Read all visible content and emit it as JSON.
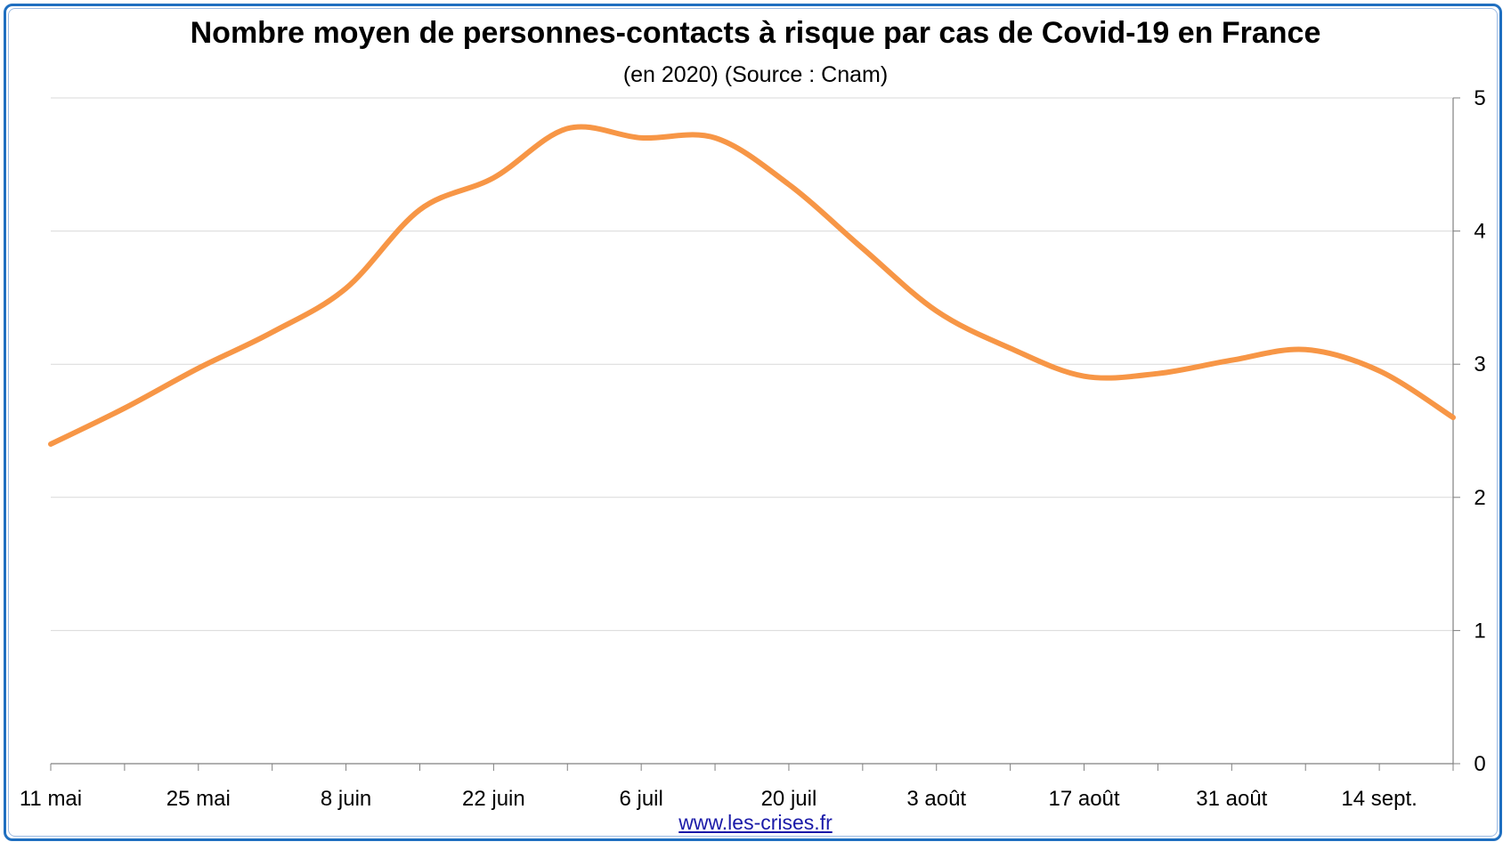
{
  "colors": {
    "frame": "#1f6fc0",
    "series": "#f79646",
    "grid": "#d9d9d9",
    "axis": "#808080",
    "link": "#1a1aa8"
  },
  "chart_data": {
    "type": "line",
    "title": "Nombre moyen de personnes-contacts à risque par cas de Covid-19 en France",
    "subtitle": "(en 2020) (Source : Cnam)",
    "xlabel": "",
    "ylabel": "",
    "x": [
      "2020-05-11",
      "2020-05-18",
      "2020-05-25",
      "2020-06-01",
      "2020-06-08",
      "2020-06-15",
      "2020-06-22",
      "2020-06-29",
      "2020-07-06",
      "2020-07-13",
      "2020-07-20",
      "2020-07-27",
      "2020-08-03",
      "2020-08-10",
      "2020-08-17",
      "2020-08-24",
      "2020-08-31",
      "2020-09-07",
      "2020-09-14",
      "2020-09-21"
    ],
    "series": [
      {
        "values": [
          2.4,
          2.67,
          2.97,
          3.24,
          3.57,
          4.16,
          4.4,
          4.77,
          4.7,
          4.7,
          4.35,
          3.87,
          3.4,
          3.12,
          2.91,
          2.93,
          3.03,
          3.11,
          2.95,
          2.6
        ]
      }
    ],
    "x_tick_labels": [
      "11 mai",
      "25 mai",
      "8 juin",
      "22 juin",
      "6 juil",
      "20 juil",
      "3 août",
      "17 août",
      "31 août",
      "14 sept."
    ],
    "y_tick_labels": [
      "0",
      "1",
      "2",
      "3",
      "4",
      "5"
    ],
    "ylim": [
      0,
      5
    ],
    "y_axis_side": "right",
    "grid": true,
    "legend": "none"
  },
  "footer": {
    "link_text": "www.les-crises.fr"
  }
}
